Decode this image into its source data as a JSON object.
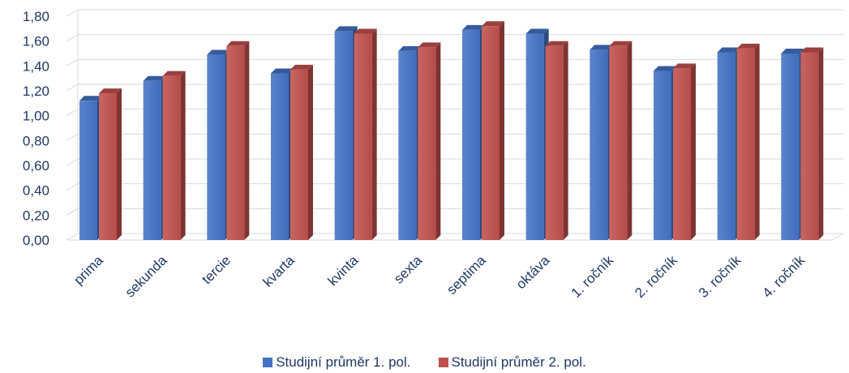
{
  "chart_data": {
    "type": "bar",
    "categories": [
      "prima",
      "sekunda",
      "tercie",
      "kvarta",
      "kvinta",
      "sexta",
      "septima",
      "oktáva",
      "1. ročník",
      "2. ročník",
      "3. ročník",
      "4. ročník"
    ],
    "series": [
      {
        "name": "Studijní průměr 1. pol.",
        "color": "#4472C4",
        "values": [
          1.12,
          1.28,
          1.49,
          1.34,
          1.68,
          1.52,
          1.69,
          1.66,
          1.53,
          1.36,
          1.51,
          1.5
        ]
      },
      {
        "name": "Studijní průměr 2. pol.",
        "color": "#C0504D",
        "values": [
          1.18,
          1.32,
          1.56,
          1.37,
          1.66,
          1.55,
          1.72,
          1.56,
          1.56,
          1.38,
          1.54,
          1.51
        ]
      }
    ],
    "yticks": [
      "0,00",
      "0,20",
      "0,40",
      "0,60",
      "0,80",
      "1,00",
      "1,20",
      "1,40",
      "1,60",
      "1,80"
    ],
    "ylim": [
      0,
      1.8
    ],
    "grid": true,
    "legend_position": "bottom"
  }
}
